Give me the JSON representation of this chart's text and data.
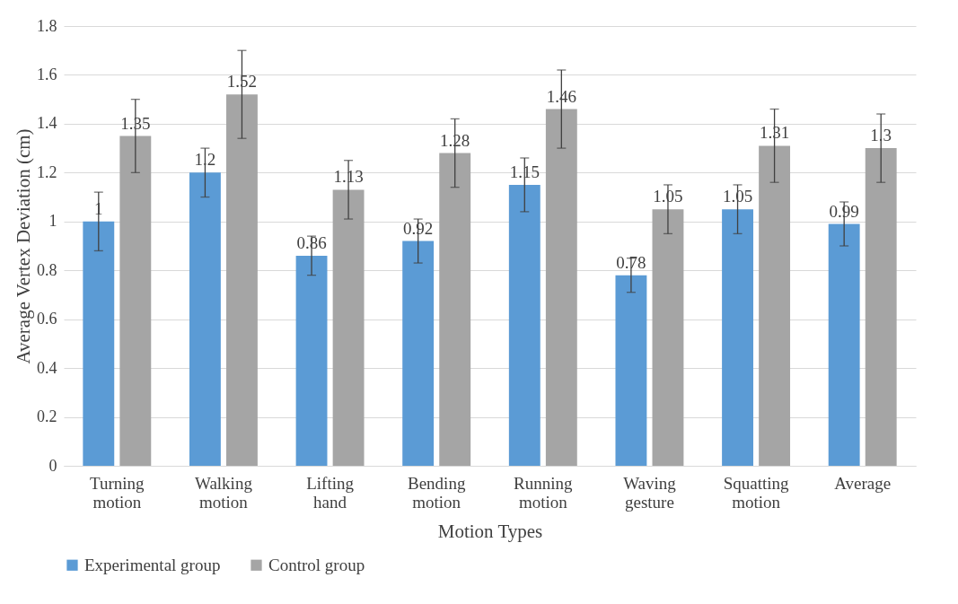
{
  "chart_data": {
    "type": "bar",
    "xlabel": "Motion Types",
    "ylabel": "Average Vertex Deviation (cm)",
    "categories": [
      "Turning motion",
      "Walking motion",
      "Lifting hand",
      "Bending motion",
      "Running motion",
      "Waving gesture",
      "Squatting motion",
      "Average"
    ],
    "series": [
      {
        "name": "Experimental group",
        "color": "#5b9bd5",
        "values": [
          1,
          1.2,
          0.86,
          0.92,
          1.15,
          0.78,
          1.05,
          0.99
        ],
        "errors": [
          0.12,
          0.1,
          0.08,
          0.09,
          0.11,
          0.07,
          0.1,
          0.09
        ]
      },
      {
        "name": "Control group",
        "color": "#a5a5a5",
        "values": [
          1.35,
          1.52,
          1.13,
          1.28,
          1.46,
          1.05,
          1.31,
          1.3
        ],
        "errors": [
          0.15,
          0.18,
          0.12,
          0.14,
          0.16,
          0.1,
          0.15,
          0.14
        ]
      }
    ],
    "ylim": [
      0,
      1.8
    ],
    "yticks": [
      0,
      0.2,
      0.4,
      0.6,
      0.8,
      1,
      1.2,
      1.4,
      1.6,
      1.8
    ],
    "grid": "y",
    "legend": "bottom",
    "data_labels": true
  }
}
